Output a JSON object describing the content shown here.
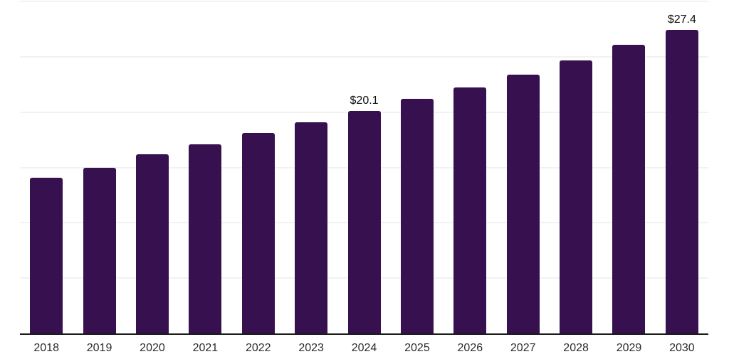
{
  "chart_data": {
    "type": "bar",
    "categories": [
      "2018",
      "2019",
      "2020",
      "2021",
      "2022",
      "2023",
      "2024",
      "2025",
      "2026",
      "2027",
      "2028",
      "2029",
      "2030"
    ],
    "values": [
      14.1,
      15.0,
      16.2,
      17.1,
      18.1,
      19.1,
      20.1,
      21.2,
      22.2,
      23.4,
      24.7,
      26.1,
      27.4
    ],
    "annotations": [
      {
        "category": "2024",
        "text": "$20.1"
      },
      {
        "category": "2030",
        "text": "$27.4"
      }
    ],
    "title": "",
    "xlabel": "",
    "ylabel": "",
    "ylim": [
      0,
      30
    ],
    "grid": {
      "visible": true,
      "interval": 5,
      "color": "#f2f2f2"
    },
    "legend_position": "none",
    "bar_color": "#37114F",
    "axis_line_color": "#1b1b1b",
    "tick_label_color": "#2b2b2b",
    "data_label_color": "#0d0d0d"
  }
}
